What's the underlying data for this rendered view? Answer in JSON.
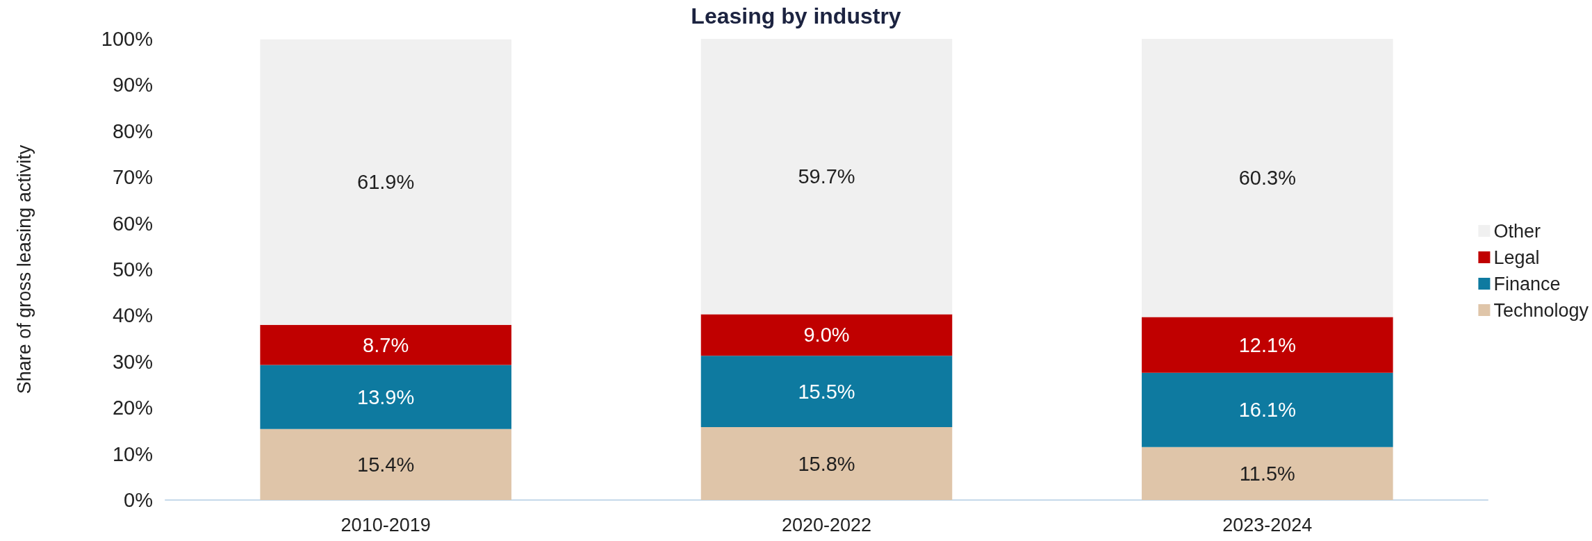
{
  "chart_data": {
    "type": "bar",
    "title": "Leasing by industry",
    "ylabel": "Share of gross leasing activity",
    "stacked": true,
    "categories": [
      "2010-2019",
      "2020-2022",
      "2023-2024"
    ],
    "series": [
      {
        "name": "Technology",
        "color": "#dfc5a9",
        "values": [
          15.4,
          15.8,
          11.5
        ],
        "value_labels": [
          "15.4%",
          "15.8%",
          "11.5%"
        ]
      },
      {
        "name": "Finance",
        "color": "#0e7aa0",
        "values": [
          13.9,
          15.5,
          16.1
        ],
        "value_labels": [
          "13.9%",
          "15.5%",
          "16.1%"
        ]
      },
      {
        "name": "Legal",
        "color": "#c00000",
        "values": [
          8.7,
          9.0,
          12.1
        ],
        "value_labels": [
          "8.7%",
          "9.0%",
          "12.1%"
        ]
      },
      {
        "name": "Other",
        "color": "#f0f0f0",
        "values": [
          61.9,
          59.7,
          60.3
        ],
        "value_labels": [
          "61.9%",
          "59.7%",
          "60.3%"
        ]
      }
    ],
    "ylim": [
      0,
      100
    ],
    "yticks": [
      {
        "value": 0,
        "label": "0%"
      },
      {
        "value": 10,
        "label": "10%"
      },
      {
        "value": 20,
        "label": "20%"
      },
      {
        "value": 30,
        "label": "30%"
      },
      {
        "value": 40,
        "label": "40%"
      },
      {
        "value": 50,
        "label": "50%"
      },
      {
        "value": 60,
        "label": "60%"
      },
      {
        "value": 70,
        "label": "70%"
      },
      {
        "value": 80,
        "label": "80%"
      },
      {
        "value": 90,
        "label": "90%"
      },
      {
        "value": 100,
        "label": "100%"
      }
    ],
    "grid": false,
    "legend": "right"
  }
}
